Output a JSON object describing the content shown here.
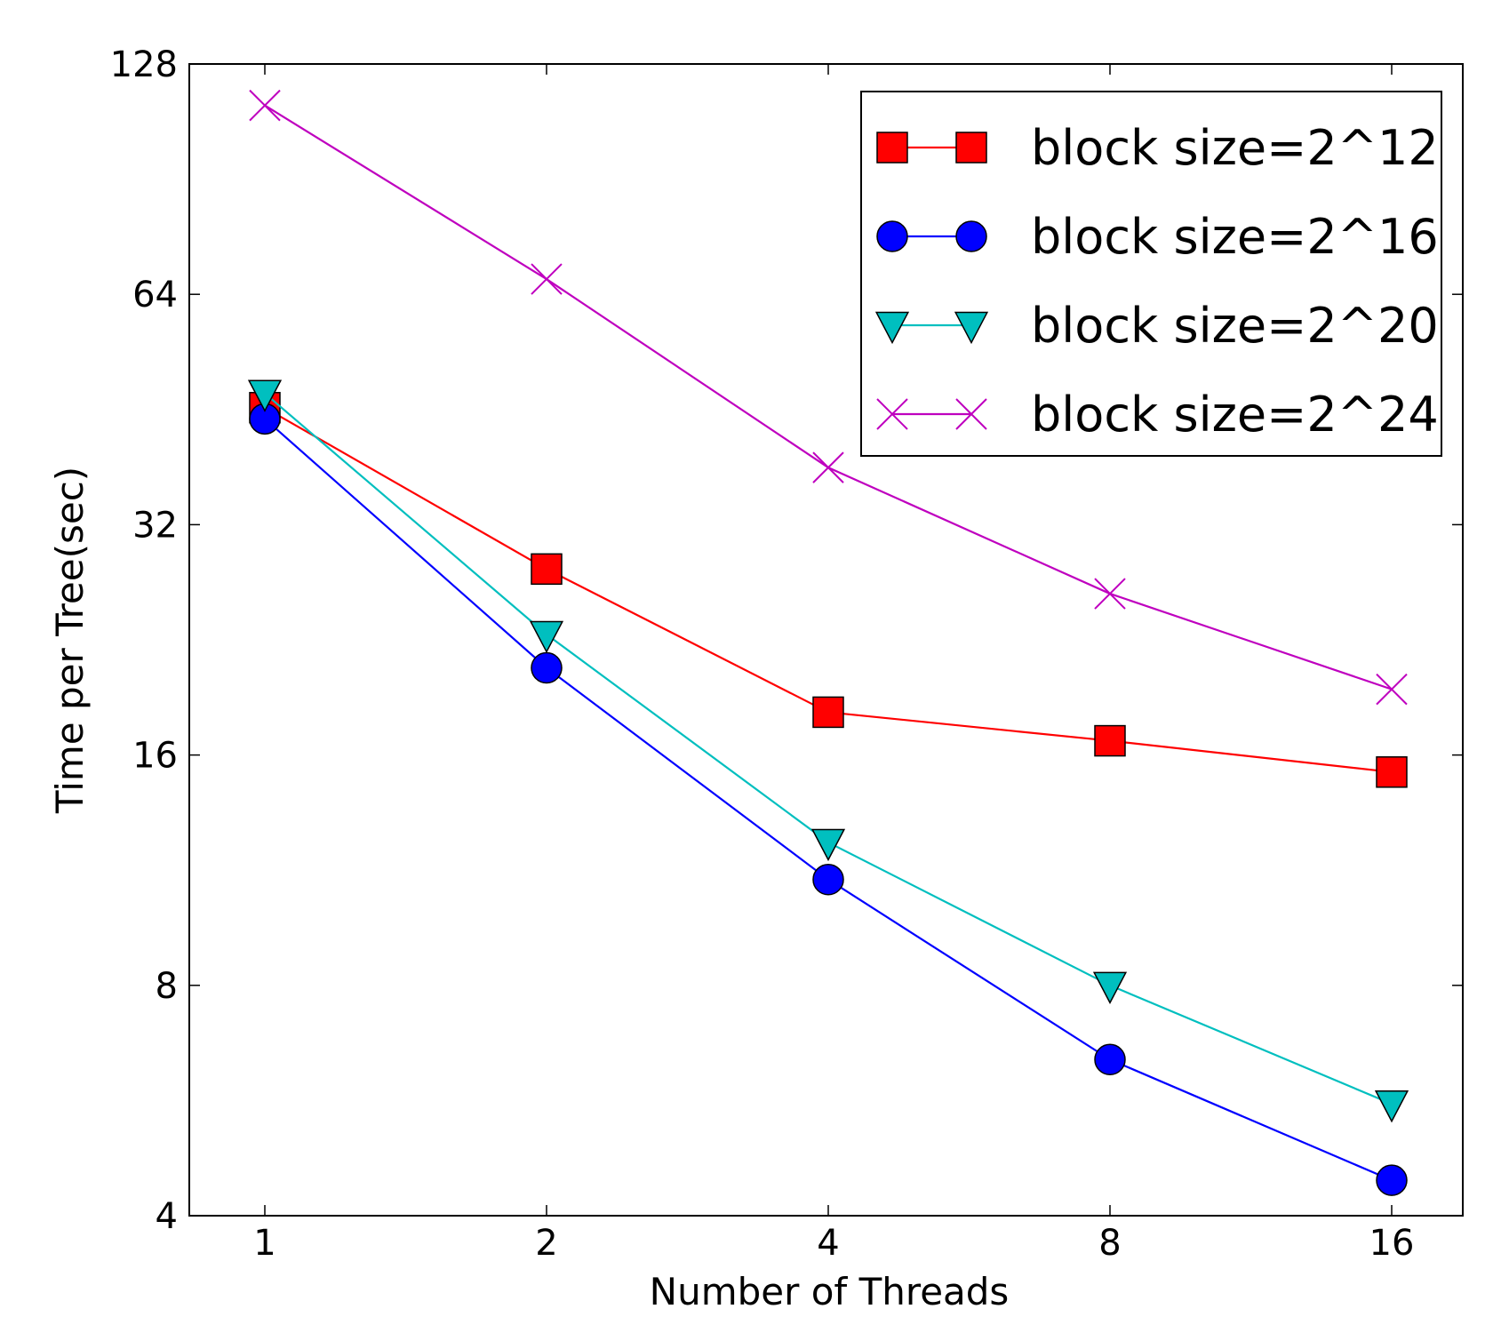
{
  "chart_data": {
    "type": "line",
    "xlabel": "Number of Threads",
    "ylabel": "Time per Tree(sec)",
    "x": [
      1,
      2,
      4,
      8,
      16
    ],
    "x_ticks": [
      "1",
      "2",
      "4",
      "8",
      "16"
    ],
    "y_ticks": [
      "4",
      "8",
      "16",
      "32",
      "64",
      "128"
    ],
    "x_scale": "log2",
    "y_scale": "log2",
    "ylim": [
      4,
      128
    ],
    "grid": false,
    "legend_position": "top-right",
    "series": [
      {
        "name": "block size=2^12",
        "color": "#ff0000",
        "marker": "square",
        "values": [
          45.5,
          28.0,
          18.2,
          16.7,
          15.2
        ]
      },
      {
        "name": "block size=2^16",
        "color": "#0000ff",
        "marker": "circle",
        "values": [
          44.0,
          20.8,
          11.0,
          6.4,
          4.45
        ]
      },
      {
        "name": "block size=2^20",
        "color": "#00bfbf",
        "marker": "triangle-down",
        "values": [
          47.5,
          23.0,
          12.3,
          8.0,
          5.6
        ]
      },
      {
        "name": "block size=2^24",
        "color": "#bf00bf",
        "marker": "x",
        "values": [
          113.0,
          67.0,
          38.0,
          26.0,
          19.5
        ]
      }
    ]
  }
}
